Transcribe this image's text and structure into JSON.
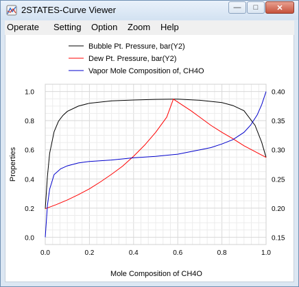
{
  "window": {
    "title": "2STATES-Curve Viewer"
  },
  "menu": [
    "Operate",
    "Setting",
    "Option",
    "Zoom",
    "Help"
  ],
  "controls": {
    "minimize": "—",
    "maximize": "□",
    "close": "✕"
  },
  "chart_data": {
    "type": "line",
    "xlabel": "Mole Composition of CH4O",
    "ylabel": "Properties",
    "xlim": [
      0,
      1
    ],
    "ylim": [
      -0.05,
      1.05
    ],
    "y2lim": [
      0.1375,
      0.4125
    ],
    "xticks": [
      "0.0",
      "0.2",
      "0.4",
      "0.6",
      "0.8",
      "1.0"
    ],
    "yticks": [
      "0.0",
      "0.2",
      "0.4",
      "0.6",
      "0.8",
      "1.0"
    ],
    "y2ticks": [
      "0.15",
      "0.20",
      "0.25",
      "0.30",
      "0.35",
      "0.40"
    ],
    "grid": true,
    "legend_position": "top",
    "series": [
      {
        "name": "Bubble Pt. Pressure, bar(Y2)",
        "color": "#000000",
        "axis": "y2",
        "x": [
          0,
          0.01,
          0.02,
          0.04,
          0.06,
          0.08,
          0.1,
          0.15,
          0.2,
          0.25,
          0.3,
          0.4,
          0.5,
          0.6,
          0.7,
          0.8,
          0.85,
          0.9,
          0.95,
          0.98,
          1.0
        ],
        "y": [
          0.199,
          0.255,
          0.294,
          0.331,
          0.349,
          0.359,
          0.366,
          0.375,
          0.38,
          0.382,
          0.384,
          0.3855,
          0.3865,
          0.387,
          0.385,
          0.381,
          0.376,
          0.367,
          0.342,
          0.313,
          0.287
        ]
      },
      {
        "name": "Dew Pt. Pressure, bar(Y2)",
        "color": "#ff0000",
        "axis": "y2",
        "x": [
          0,
          0.05,
          0.1,
          0.15,
          0.2,
          0.25,
          0.3,
          0.35,
          0.4,
          0.45,
          0.5,
          0.55,
          0.58,
          0.62,
          0.66,
          0.7,
          0.75,
          0.8,
          0.85,
          0.9,
          0.95,
          1.0
        ],
        "y": [
          0.199,
          0.206,
          0.214,
          0.223,
          0.233,
          0.245,
          0.258,
          0.272,
          0.289,
          0.308,
          0.33,
          0.356,
          0.387,
          0.377,
          0.367,
          0.356,
          0.342,
          0.33,
          0.319,
          0.307,
          0.297,
          0.287
        ]
      },
      {
        "name": "Vapor Mole Composition of, CH4O",
        "color": "#0000cc",
        "axis": "y",
        "x": [
          0,
          0.01,
          0.02,
          0.04,
          0.07,
          0.1,
          0.15,
          0.2,
          0.3,
          0.4,
          0.5,
          0.6,
          0.7,
          0.75,
          0.8,
          0.85,
          0.9,
          0.93,
          0.96,
          0.98,
          1.0
        ],
        "y": [
          0.0,
          0.22,
          0.33,
          0.43,
          0.47,
          0.49,
          0.51,
          0.52,
          0.53,
          0.545,
          0.555,
          0.57,
          0.6,
          0.615,
          0.64,
          0.67,
          0.72,
          0.77,
          0.84,
          0.91,
          1.0
        ]
      }
    ]
  }
}
